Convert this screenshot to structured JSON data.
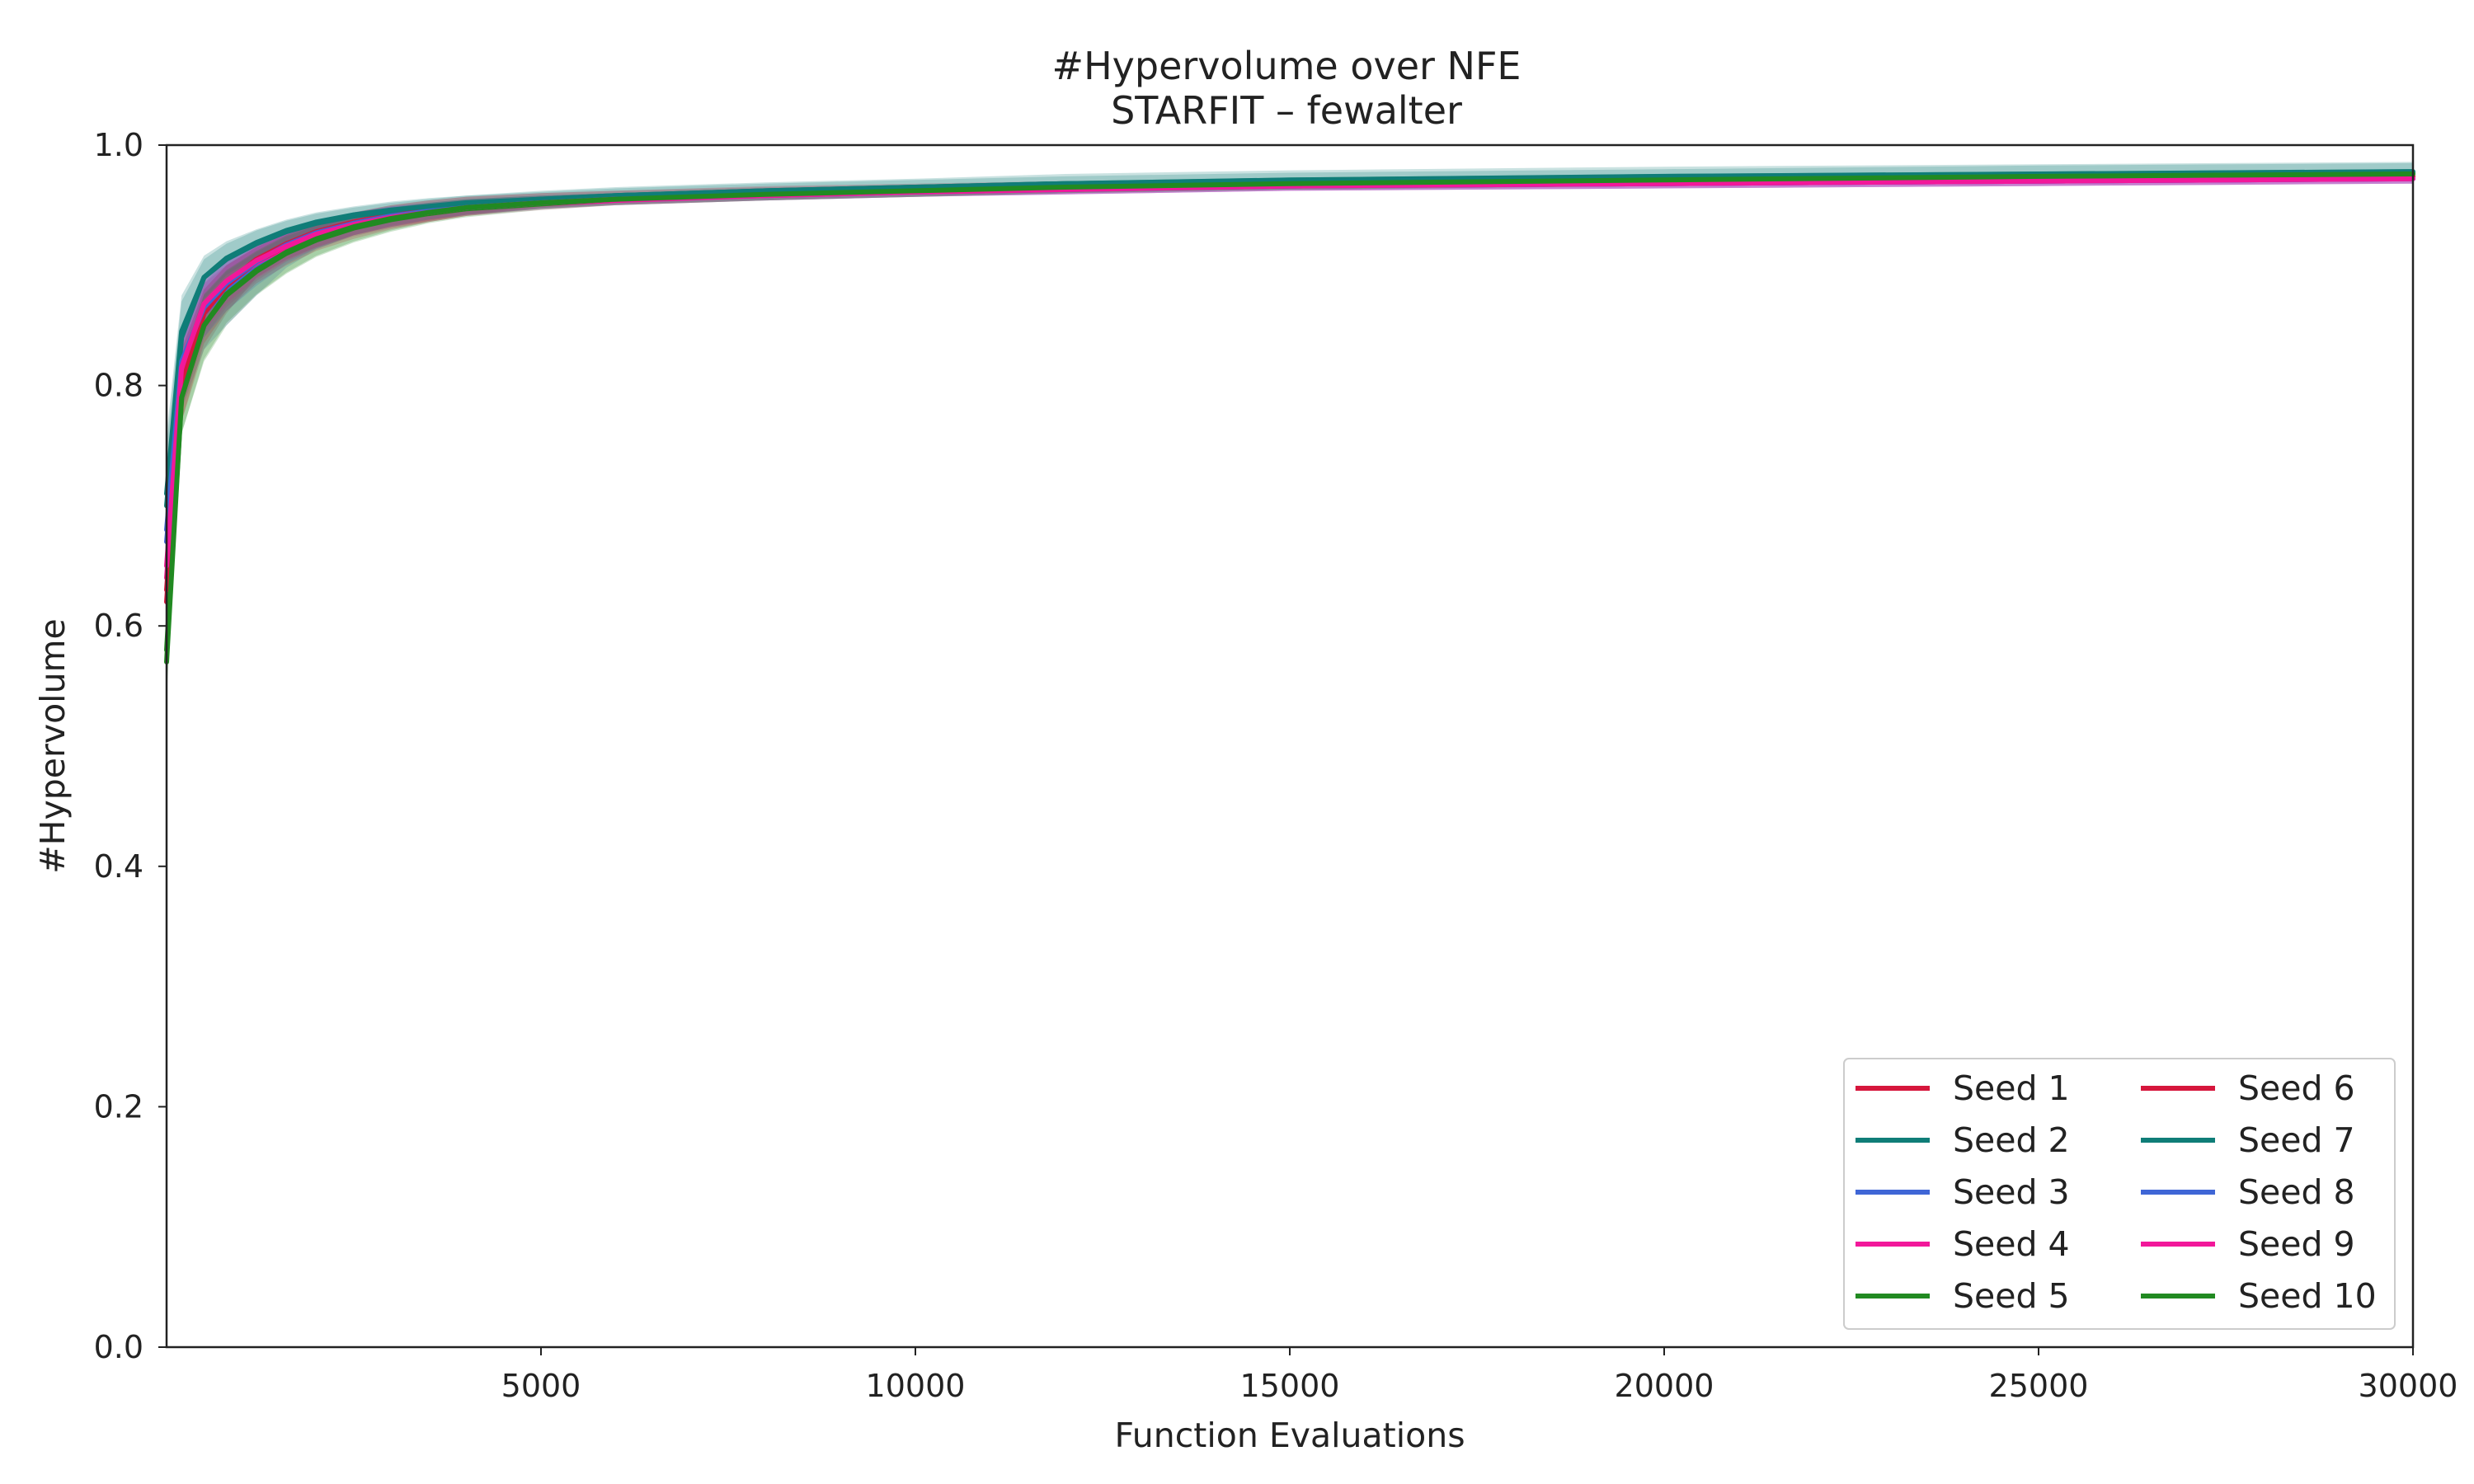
{
  "chart_data": {
    "type": "line",
    "title": "#Hypervolume over NFE",
    "subtitle": "STARFIT – fewalter",
    "xlabel": "Function Evaluations",
    "ylabel": "#Hypervolume",
    "xlim": [
      0,
      30000
    ],
    "ylim": [
      0.0,
      1.0
    ],
    "xticks": [
      5000,
      10000,
      15000,
      20000,
      25000,
      30000
    ],
    "yticks": [
      0.0,
      0.2,
      0.4,
      0.6,
      0.8,
      1.0
    ],
    "ytick_labels": [
      "0.0",
      "0.2",
      "0.4",
      "0.6",
      "0.8",
      "1.0"
    ],
    "grid": false,
    "legend_position": "bottom-right",
    "legend_columns": 2,
    "bands": "shaded min–max range per seed",
    "x": [
      0,
      200,
      500,
      800,
      1200,
      1600,
      2000,
      2500,
      3000,
      3500,
      4000,
      5000,
      6000,
      8000,
      10000,
      12000,
      15000,
      20000,
      25000,
      30000
    ],
    "series": [
      {
        "name": "Seed 1",
        "color": "#d6163c",
        "values": [
          0.62,
          0.8,
          0.86,
          0.885,
          0.905,
          0.918,
          0.928,
          0.936,
          0.942,
          0.946,
          0.95,
          0.954,
          0.957,
          0.961,
          0.964,
          0.966,
          0.968,
          0.97,
          0.972,
          0.974
        ],
        "lower": [
          0.58,
          0.77,
          0.83,
          0.86,
          0.89,
          0.905,
          0.915,
          0.925,
          0.932,
          0.937,
          0.942,
          0.949,
          0.953,
          0.957,
          0.96,
          0.962,
          0.964,
          0.966,
          0.968,
          0.97
        ],
        "upper": [
          0.66,
          0.83,
          0.88,
          0.9,
          0.915,
          0.928,
          0.936,
          0.944,
          0.95,
          0.954,
          0.957,
          0.96,
          0.962,
          0.965,
          0.967,
          0.969,
          0.971,
          0.973,
          0.975,
          0.977
        ]
      },
      {
        "name": "Seed 2",
        "color": "#0f7d78",
        "values": [
          0.7,
          0.84,
          0.89,
          0.905,
          0.918,
          0.928,
          0.935,
          0.941,
          0.945,
          0.948,
          0.951,
          0.955,
          0.958,
          0.962,
          0.965,
          0.968,
          0.971,
          0.974,
          0.976,
          0.978
        ],
        "lower": [
          0.66,
          0.81,
          0.87,
          0.89,
          0.905,
          0.917,
          0.926,
          0.933,
          0.938,
          0.942,
          0.945,
          0.95,
          0.953,
          0.957,
          0.96,
          0.962,
          0.965,
          0.967,
          0.969,
          0.971
        ],
        "upper": [
          0.75,
          0.87,
          0.905,
          0.918,
          0.929,
          0.937,
          0.943,
          0.948,
          0.952,
          0.955,
          0.958,
          0.962,
          0.965,
          0.969,
          0.972,
          0.976,
          0.979,
          0.982,
          0.984,
          0.986
        ]
      },
      {
        "name": "Seed 3",
        "color": "#3f66d6",
        "values": [
          0.67,
          0.81,
          0.86,
          0.88,
          0.9,
          0.915,
          0.926,
          0.935,
          0.941,
          0.945,
          0.948,
          0.952,
          0.955,
          0.958,
          0.961,
          0.963,
          0.966,
          0.968,
          0.97,
          0.972
        ],
        "lower": [
          0.63,
          0.78,
          0.83,
          0.85,
          0.875,
          0.898,
          0.913,
          0.925,
          0.933,
          0.938,
          0.942,
          0.947,
          0.951,
          0.954,
          0.957,
          0.959,
          0.962,
          0.964,
          0.966,
          0.968
        ],
        "upper": [
          0.72,
          0.84,
          0.885,
          0.905,
          0.918,
          0.929,
          0.937,
          0.944,
          0.949,
          0.952,
          0.955,
          0.958,
          0.96,
          0.963,
          0.965,
          0.967,
          0.969,
          0.971,
          0.973,
          0.975
        ]
      },
      {
        "name": "Seed 4",
        "color": "#f2189a",
        "values": [
          0.64,
          0.81,
          0.865,
          0.885,
          0.902,
          0.915,
          0.925,
          0.933,
          0.939,
          0.943,
          0.947,
          0.951,
          0.954,
          0.958,
          0.961,
          0.963,
          0.966,
          0.968,
          0.97,
          0.972
        ],
        "lower": [
          0.6,
          0.78,
          0.84,
          0.865,
          0.887,
          0.903,
          0.914,
          0.924,
          0.931,
          0.936,
          0.941,
          0.946,
          0.95,
          0.954,
          0.957,
          0.959,
          0.962,
          0.964,
          0.966,
          0.968
        ],
        "upper": [
          0.68,
          0.84,
          0.885,
          0.9,
          0.915,
          0.926,
          0.934,
          0.941,
          0.946,
          0.95,
          0.953,
          0.956,
          0.958,
          0.962,
          0.965,
          0.967,
          0.97,
          0.972,
          0.974,
          0.976
        ]
      },
      {
        "name": "Seed 5",
        "color": "#218a21",
        "values": [
          0.58,
          0.79,
          0.85,
          0.875,
          0.895,
          0.91,
          0.921,
          0.931,
          0.938,
          0.943,
          0.947,
          0.951,
          0.955,
          0.959,
          0.962,
          0.965,
          0.968,
          0.971,
          0.974,
          0.976
        ],
        "lower": [
          0.55,
          0.76,
          0.82,
          0.85,
          0.875,
          0.893,
          0.907,
          0.919,
          0.928,
          0.935,
          0.94,
          0.946,
          0.95,
          0.954,
          0.957,
          0.96,
          0.963,
          0.966,
          0.969,
          0.971
        ],
        "upper": [
          0.62,
          0.82,
          0.875,
          0.895,
          0.911,
          0.924,
          0.933,
          0.941,
          0.947,
          0.951,
          0.954,
          0.957,
          0.96,
          0.964,
          0.967,
          0.97,
          0.973,
          0.976,
          0.978,
          0.98
        ]
      },
      {
        "name": "Seed 6",
        "color": "#d6163c",
        "values": [
          0.63,
          0.8,
          0.86,
          0.883,
          0.903,
          0.916,
          0.926,
          0.934,
          0.941,
          0.946,
          0.95,
          0.954,
          0.957,
          0.961,
          0.964,
          0.966,
          0.968,
          0.97,
          0.972,
          0.974
        ],
        "lower": [
          0.59,
          0.77,
          0.835,
          0.862,
          0.885,
          0.9,
          0.912,
          0.922,
          0.93,
          0.936,
          0.941,
          0.948,
          0.952,
          0.957,
          0.96,
          0.962,
          0.964,
          0.966,
          0.968,
          0.97
        ],
        "upper": [
          0.67,
          0.83,
          0.88,
          0.9,
          0.916,
          0.928,
          0.937,
          0.944,
          0.95,
          0.954,
          0.957,
          0.96,
          0.962,
          0.966,
          0.968,
          0.97,
          0.972,
          0.974,
          0.976,
          0.978
        ]
      },
      {
        "name": "Seed 7",
        "color": "#0f7d78",
        "values": [
          0.71,
          0.845,
          0.89,
          0.906,
          0.919,
          0.929,
          0.936,
          0.942,
          0.946,
          0.949,
          0.952,
          0.955,
          0.958,
          0.962,
          0.965,
          0.968,
          0.97,
          0.973,
          0.975,
          0.977
        ],
        "lower": [
          0.67,
          0.82,
          0.872,
          0.892,
          0.907,
          0.919,
          0.928,
          0.935,
          0.94,
          0.944,
          0.947,
          0.951,
          0.954,
          0.958,
          0.961,
          0.963,
          0.966,
          0.968,
          0.97,
          0.972
        ],
        "upper": [
          0.76,
          0.875,
          0.908,
          0.92,
          0.93,
          0.938,
          0.944,
          0.949,
          0.953,
          0.956,
          0.958,
          0.961,
          0.964,
          0.968,
          0.971,
          0.974,
          0.977,
          0.98,
          0.983,
          0.985
        ]
      },
      {
        "name": "Seed 8",
        "color": "#3f66d6",
        "values": [
          0.68,
          0.82,
          0.865,
          0.885,
          0.903,
          0.917,
          0.927,
          0.935,
          0.941,
          0.945,
          0.948,
          0.952,
          0.955,
          0.958,
          0.961,
          0.963,
          0.966,
          0.968,
          0.97,
          0.972
        ],
        "lower": [
          0.64,
          0.79,
          0.84,
          0.862,
          0.883,
          0.901,
          0.914,
          0.925,
          0.932,
          0.938,
          0.942,
          0.947,
          0.95,
          0.954,
          0.957,
          0.959,
          0.962,
          0.964,
          0.966,
          0.968
        ],
        "upper": [
          0.73,
          0.85,
          0.89,
          0.907,
          0.92,
          0.93,
          0.938,
          0.944,
          0.949,
          0.952,
          0.955,
          0.958,
          0.96,
          0.963,
          0.965,
          0.967,
          0.969,
          0.971,
          0.973,
          0.975
        ]
      },
      {
        "name": "Seed 9",
        "color": "#f2189a",
        "values": [
          0.65,
          0.815,
          0.868,
          0.887,
          0.904,
          0.916,
          0.926,
          0.934,
          0.94,
          0.944,
          0.948,
          0.952,
          0.955,
          0.958,
          0.961,
          0.963,
          0.966,
          0.968,
          0.97,
          0.972
        ],
        "lower": [
          0.61,
          0.785,
          0.845,
          0.868,
          0.889,
          0.904,
          0.915,
          0.925,
          0.932,
          0.937,
          0.942,
          0.947,
          0.95,
          0.954,
          0.957,
          0.959,
          0.962,
          0.964,
          0.966,
          0.968
        ],
        "upper": [
          0.69,
          0.845,
          0.888,
          0.903,
          0.917,
          0.927,
          0.935,
          0.942,
          0.947,
          0.951,
          0.954,
          0.957,
          0.959,
          0.962,
          0.965,
          0.967,
          0.97,
          0.972,
          0.974,
          0.976
        ]
      },
      {
        "name": "Seed 10",
        "color": "#218a21",
        "values": [
          0.57,
          0.79,
          0.85,
          0.876,
          0.896,
          0.911,
          0.922,
          0.932,
          0.939,
          0.944,
          0.948,
          0.952,
          0.955,
          0.959,
          0.962,
          0.965,
          0.968,
          0.971,
          0.974,
          0.976
        ],
        "lower": [
          0.54,
          0.76,
          0.822,
          0.852,
          0.876,
          0.894,
          0.908,
          0.92,
          0.929,
          0.936,
          0.941,
          0.947,
          0.95,
          0.954,
          0.957,
          0.96,
          0.963,
          0.966,
          0.969,
          0.971
        ],
        "upper": [
          0.61,
          0.82,
          0.876,
          0.896,
          0.912,
          0.925,
          0.934,
          0.942,
          0.948,
          0.952,
          0.955,
          0.958,
          0.96,
          0.964,
          0.967,
          0.97,
          0.973,
          0.976,
          0.978,
          0.98
        ]
      }
    ]
  }
}
